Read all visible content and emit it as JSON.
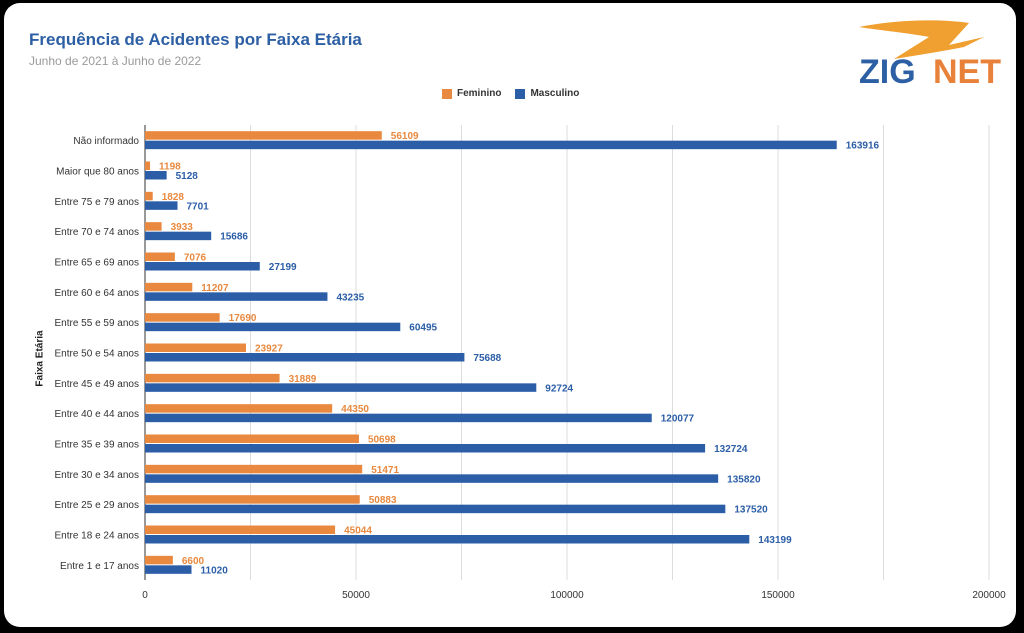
{
  "title": "Frequência de Acidentes por Faixa Etária",
  "subtitle": "Junho de 2021 à Junho de 2022",
  "logo": {
    "text_a": "ZIG",
    "text_b": "NET",
    "color_a": "#2d5fa4",
    "color_b": "#e8823a"
  },
  "colors": {
    "feminino": "#e8893f",
    "masculino": "#2b5ea7",
    "title": "#2d5fa4"
  },
  "chart_data": {
    "type": "bar",
    "orientation": "horizontal",
    "title": "Frequência de Acidentes por Faixa Etária",
    "subtitle": "Junho de 2021 à Junho de 2022",
    "ylabel": "Faixa Etária",
    "xlabel": "",
    "xlim": [
      0,
      200000
    ],
    "xticks": [
      0,
      50000,
      100000,
      150000,
      200000
    ],
    "legend_position": "top",
    "grid": true,
    "categories": [
      "Não informado",
      "Maior que 80 anos",
      "Entre 75 e 79 anos",
      "Entre 70 e 74 anos",
      "Entre 65 e 69 anos",
      "Entre 60 e 64 anos",
      "Entre 55 e 59 anos",
      "Entre 50 e 54 anos",
      "Entre 45 e 49 anos",
      "Entre 40 e 44 anos",
      "Entre 35 e 39 anos",
      "Entre 30 e 34 anos",
      "Entre 25 e 29 anos",
      "Entre 18 e 24 anos",
      "Entre 1 e 17 anos"
    ],
    "series": [
      {
        "name": "Feminino",
        "color": "#e8893f",
        "values": [
          56109,
          1198,
          1828,
          3933,
          7076,
          11207,
          17690,
          23927,
          31889,
          44350,
          50698,
          51471,
          50883,
          45044,
          6600
        ]
      },
      {
        "name": "Masculino",
        "color": "#2b5ea7",
        "values": [
          163916,
          5128,
          7701,
          15686,
          27199,
          43235,
          60495,
          75688,
          92724,
          120077,
          132724,
          135820,
          137520,
          143199,
          11020
        ]
      }
    ]
  }
}
